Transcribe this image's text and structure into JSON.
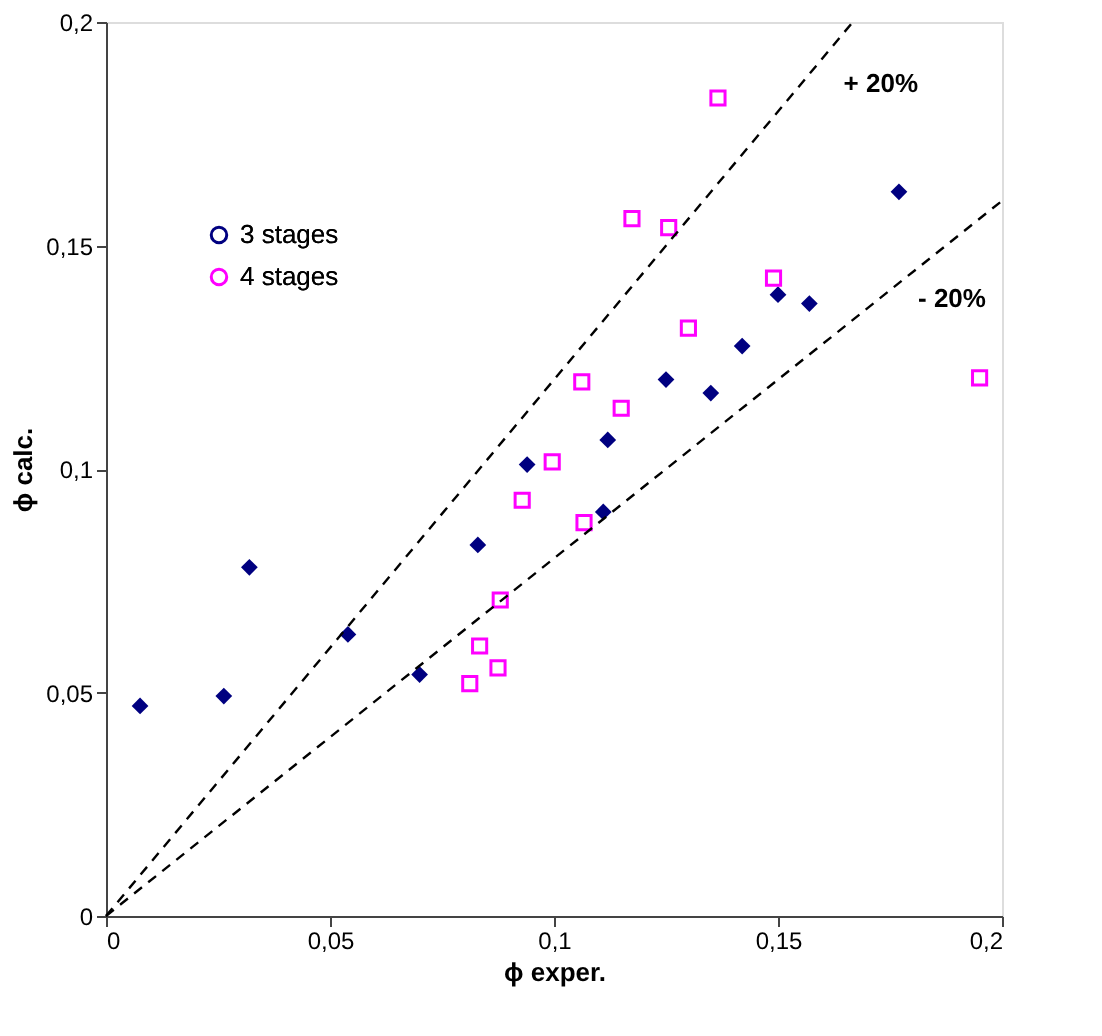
{
  "chart_data": {
    "type": "scatter",
    "xlabel": "ϕ exper.",
    "ylabel": "ϕ calc.",
    "xlim": [
      0,
      0.2
    ],
    "ylim": [
      0,
      0.2
    ],
    "xticks": [
      {
        "value": 0,
        "label": "0"
      },
      {
        "value": 0.05,
        "label": "0,05"
      },
      {
        "value": 0.1,
        "label": "0,1"
      },
      {
        "value": 0.15,
        "label": "0,15"
      },
      {
        "value": 0.2,
        "label": "0,2"
      }
    ],
    "yticks": [
      {
        "value": 0,
        "label": "0"
      },
      {
        "value": 0.05,
        "label": "0,05"
      },
      {
        "value": 0.1,
        "label": "0,1"
      },
      {
        "value": 0.15,
        "label": "0,15"
      },
      {
        "value": 0.2,
        "label": "0,2"
      }
    ],
    "grid": false,
    "legend": "top left",
    "series": [
      {
        "name": "3 stages",
        "color": "#000080",
        "marker": "diamond",
        "x": [
          0.0076,
          0.0263,
          0.032,
          0.054,
          0.07,
          0.083,
          0.094,
          0.111,
          0.112,
          0.125,
          0.135,
          0.142,
          0.15,
          0.157,
          0.177
        ],
        "values": [
          0.047,
          0.0492,
          0.078,
          0.063,
          0.054,
          0.083,
          0.101,
          0.0904,
          0.1065,
          0.12,
          0.117,
          0.1275,
          0.139,
          0.137,
          0.162
        ]
      },
      {
        "name": "4 stages",
        "color": "#ff00ff",
        "marker": "square",
        "x": [
          0.0996,
          0.0929,
          0.088,
          0.0834,
          0.0875,
          0.0812,
          0.1067,
          0.115,
          0.1062,
          0.13,
          0.149,
          0.1174,
          0.1256,
          0.1366,
          0.195
        ],
        "values": [
          0.1016,
          0.093,
          0.0707,
          0.0604,
          0.0555,
          0.052,
          0.088,
          0.1136,
          0.1195,
          0.1315,
          0.1427,
          0.156,
          0.154,
          0.183,
          0.1204
        ]
      },
      {
        "type": "line",
        "name": "+ 20%",
        "color": "#000000",
        "line_style": "dashed",
        "marker": "none",
        "x": [
          0,
          0.1667
        ],
        "values": [
          0,
          0.2
        ]
      },
      {
        "type": "line",
        "name": "- 20%",
        "color": "#000000",
        "line_style": "dashed",
        "marker": "none",
        "x": [
          0,
          0.2
        ],
        "values": [
          0,
          0.16
        ]
      }
    ]
  }
}
